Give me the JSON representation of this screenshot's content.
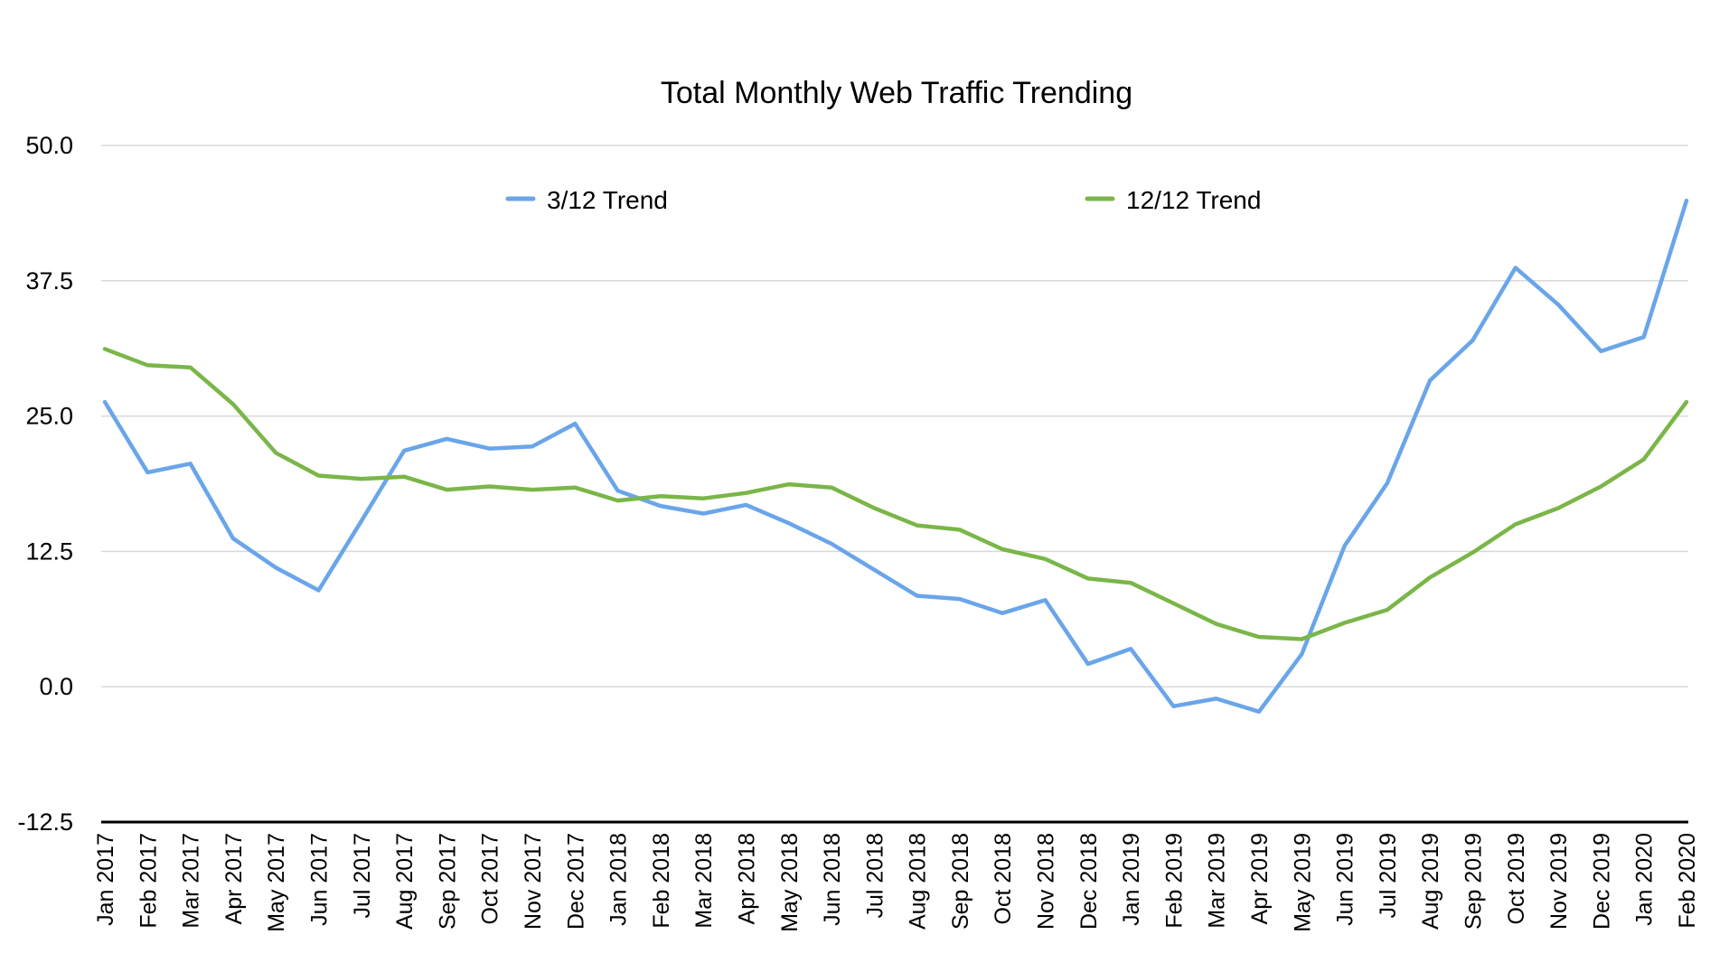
{
  "chart_data": {
    "type": "line",
    "title": "Total Monthly Web Traffic Trending",
    "xlabel": "",
    "ylabel": "",
    "ylim": [
      -12.5,
      50
    ],
    "yticks": [
      "50.0",
      "37.5",
      "25.0",
      "12.5",
      "0.0",
      "-12.5"
    ],
    "ytick_values": [
      50,
      37.5,
      25,
      12.5,
      0,
      -12.5
    ],
    "grid": true,
    "legend_placement": "top",
    "categories": [
      "Jan 2017",
      "Feb 2017",
      "Mar 2017",
      "Apr 2017",
      "May 2017",
      "Jun 2017",
      "Jul 2017",
      "Aug 2017",
      "Sep 2017",
      "Oct 2017",
      "Nov 2017",
      "Dec 2017",
      "Jan 2018",
      "Feb 2018",
      "Mar 2018",
      "Apr 2018",
      "May 2018",
      "Jun 2018",
      "Jul 2018",
      "Aug 2018",
      "Sep 2018",
      "Oct 2018",
      "Nov 2018",
      "Dec 2018",
      "Jan 2019",
      "Feb 2019",
      "Mar 2019",
      "Apr 2019",
      "May 2019",
      "Jun 2019",
      "Jul 2019",
      "Aug 2019",
      "Sep 2019",
      "Oct 2019",
      "Nov 2019",
      "Dec 2019",
      "Jan 2020",
      "Feb 2020"
    ],
    "series": [
      {
        "name": "3/12 Trend",
        "color": "#6aa5ea",
        "values": [
          26.3,
          19.8,
          20.6,
          13.7,
          11.0,
          8.9,
          15.3,
          21.8,
          22.9,
          22.0,
          22.2,
          24.3,
          18.1,
          16.7,
          16.0,
          16.8,
          15.1,
          13.2,
          10.8,
          8.4,
          8.1,
          6.8,
          8.0,
          2.1,
          3.5,
          -1.8,
          -1.1,
          -2.3,
          3.0,
          13.0,
          18.8,
          28.3,
          32.0,
          38.7,
          35.3,
          31.0,
          32.3,
          44.9
        ]
      },
      {
        "name": "12/12 Trend",
        "color": "#7ab648",
        "values": [
          31.2,
          29.7,
          29.5,
          26.1,
          21.6,
          19.5,
          19.2,
          19.4,
          18.2,
          18.5,
          18.2,
          18.4,
          17.2,
          17.6,
          17.4,
          17.9,
          18.7,
          18.4,
          16.5,
          14.9,
          14.5,
          12.7,
          11.8,
          10.0,
          9.6,
          7.7,
          5.8,
          4.6,
          4.4,
          5.9,
          7.1,
          10.1,
          12.4,
          15.0,
          16.5,
          18.5,
          21.0,
          26.3
        ]
      }
    ]
  }
}
